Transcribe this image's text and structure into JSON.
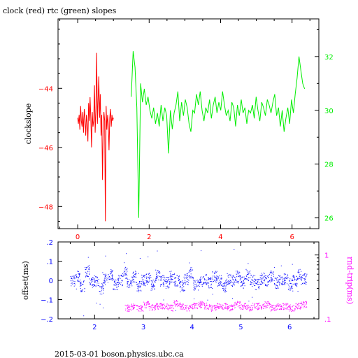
{
  "figure": {
    "title": "clock (red) rtc (green) slopes",
    "footer": "2015-03-01 boson.physics.ubc.ca"
  },
  "colors": {
    "clock": "#ff0000",
    "rtc": "#00ee00",
    "offset": "#0000ff",
    "rndtrip": "#ff00ff",
    "axis": "#000000"
  },
  "chart_data": [
    {
      "type": "line",
      "title": "clock (red) rtc (green) slopes",
      "xlim": [
        -0.55,
        6.75
      ],
      "x_ticks": [
        0,
        2,
        4,
        6
      ],
      "ylabel": "clockslope",
      "ylim": [
        -48.75,
        -41.65
      ],
      "y_ticks": [
        -44,
        -46,
        -48
      ],
      "y2lim": [
        25.6,
        33.4
      ],
      "y2_ticks": [
        26,
        28,
        30,
        32
      ],
      "y2_color": "#00ee00",
      "grid": false,
      "series": [
        {
          "name": "clock",
          "color": "#ff0000",
          "axis": "left",
          "x_start": 0.0,
          "x_end": 1.0,
          "values": [
            -45.0,
            -45.2,
            -44.9,
            -45.4,
            -44.6,
            -45.1,
            -45.3,
            -44.8,
            -45.5,
            -44.7,
            -45.0,
            -45.6,
            -44.9,
            -45.2,
            -45.8,
            -44.5,
            -45.1,
            -44.3,
            -45.0,
            -46.0,
            -44.8,
            -45.3,
            -45.1,
            -43.9,
            -45.5,
            -44.7,
            -42.8,
            -45.2,
            -44.4,
            -43.6,
            -45.0,
            -44.2,
            -45.6,
            -44.9,
            -47.1,
            -45.3,
            -44.8,
            -45.1,
            -48.5,
            -44.6,
            -45.4,
            -44.9,
            -45.2,
            -46.1,
            -45.0,
            -44.7,
            -45.3,
            -44.9,
            -45.1,
            -45.0
          ]
        },
        {
          "name": "rtc",
          "color": "#00ee00",
          "axis": "right",
          "x_start": 1.5,
          "x_end": 6.35,
          "values": [
            30.5,
            32.2,
            31.6,
            30.1,
            26.0,
            31.0,
            30.3,
            30.8,
            30.2,
            30.5,
            30.0,
            29.7,
            30.1,
            29.5,
            29.9,
            29.4,
            30.2,
            29.6,
            30.1,
            29.8,
            28.4,
            30.0,
            29.3,
            29.9,
            30.2,
            30.7,
            29.6,
            30.3,
            29.8,
            30.4,
            30.1,
            29.5,
            29.2,
            30.0,
            29.9,
            30.6,
            30.2,
            30.7,
            30.0,
            29.6,
            30.1,
            29.9,
            30.4,
            29.7,
            30.2,
            30.5,
            29.9,
            30.3,
            30.0,
            30.7,
            30.2,
            29.8,
            30.0,
            29.6,
            30.3,
            30.1,
            29.4,
            30.2,
            29.8,
            30.4,
            29.9,
            30.1,
            29.5,
            30.0,
            29.9,
            30.2,
            29.7,
            30.5,
            30.0,
            29.6,
            30.3,
            30.1,
            29.8,
            30.4,
            30.2,
            29.9,
            30.3,
            30.6,
            29.8,
            30.1,
            29.4,
            30.0,
            29.2,
            29.7,
            30.1,
            29.5,
            30.4,
            29.9,
            30.6,
            31.2,
            32.0,
            31.5,
            31.0,
            30.8
          ]
        }
      ]
    },
    {
      "type": "scatter",
      "xlim": [
        1.25,
        6.6
      ],
      "x_ticks": [
        2,
        3,
        4,
        5,
        6
      ],
      "ylabel": "offset(ms)",
      "ylim": [
        -0.2,
        0.2
      ],
      "y_ticks": [
        0.2,
        0.1,
        0,
        -0.1,
        -0.2
      ],
      "y2label": "rnd-trip(ms)",
      "y2_scale": "log",
      "y2lim": [
        0.1,
        1.6
      ],
      "y2_ticks": [
        1,
        0.1
      ],
      "grid": false,
      "series": [
        {
          "name": "offset",
          "color": "#0000ff",
          "axis": "left",
          "x_start": 1.5,
          "x_end": 6.35,
          "spread": 0.03,
          "values": [
            0.0,
            0.02,
            -0.03,
            0.05,
            -0.01,
            0.0,
            -0.04,
            0.01,
            0.03,
            -0.02,
            0.0,
            0.04,
            -0.01,
            0.02,
            -0.03,
            0.0,
            0.01,
            -0.02,
            0.03,
            0.0,
            -0.01,
            0.02,
            0.0,
            -0.03,
            0.01,
            0.04,
            -0.02,
            0.0,
            0.01,
            -0.01,
            0.02,
            0.0,
            -0.03,
            0.01,
            0.0,
            0.02,
            -0.01,
            0.03,
            0.0,
            -0.02,
            0.01,
            0.0,
            0.02,
            -0.01,
            0.0,
            0.01,
            -0.02,
            0.0,
            0.03,
            0.01
          ]
        },
        {
          "name": "rndtrip",
          "color": "#ff00ff",
          "axis": "right",
          "x_start": 2.62,
          "x_end": 6.35,
          "spread": 0.12,
          "values": [
            0.15,
            0.16,
            0.15,
            0.17,
            0.15,
            0.16,
            0.16,
            0.15,
            0.18,
            0.16,
            0.15,
            0.16,
            0.17,
            0.16,
            0.15,
            0.16,
            0.16,
            0.15,
            0.17,
            0.16,
            0.15,
            0.16,
            0.16,
            0.17,
            0.15,
            0.16,
            0.16,
            0.15,
            0.16,
            0.17
          ]
        }
      ]
    }
  ]
}
